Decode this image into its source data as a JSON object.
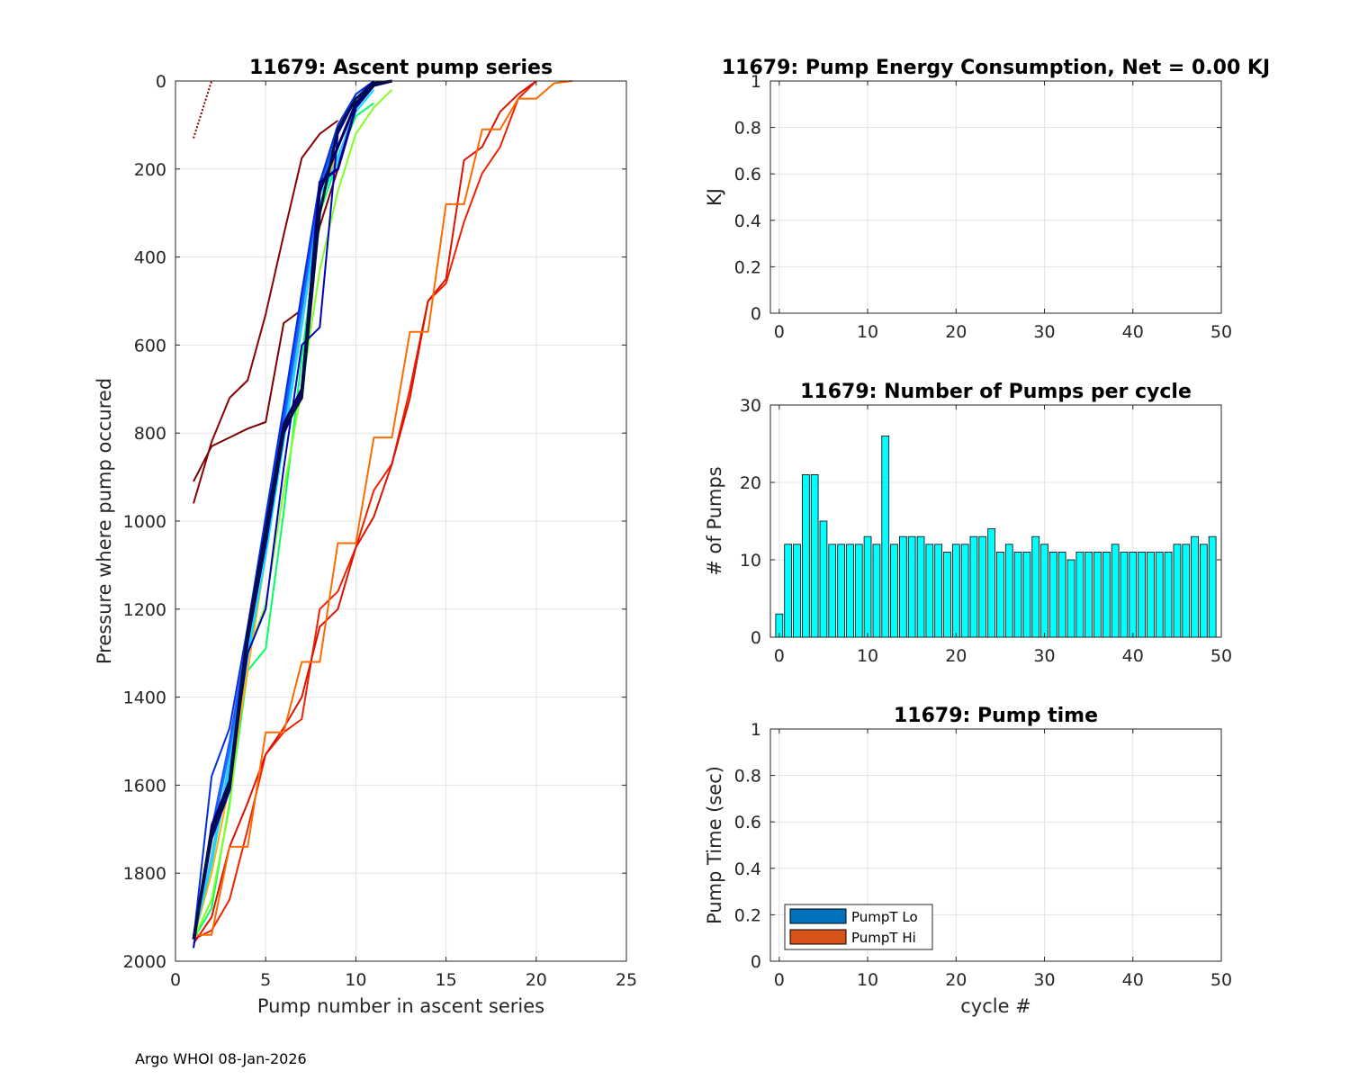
{
  "footer": "Argo WHOI 08-Jan-2026",
  "chart_data": [
    {
      "id": "ascent",
      "type": "line",
      "title": "11679: Ascent pump series",
      "xlabel": "Pump number in ascent series",
      "ylabel": "Pressure where pump occured",
      "xlim": [
        0,
        25
      ],
      "ylim": [
        0,
        2000
      ],
      "y_reversed": true,
      "xticks": [
        0,
        5,
        10,
        15,
        20,
        25
      ],
      "yticks": [
        0,
        200,
        400,
        600,
        800,
        1000,
        1200,
        1400,
        1600,
        1800,
        2000
      ],
      "grid": true,
      "series": [
        {
          "name": "cycle-0",
          "color": "#800000",
          "x": [
            1,
            2
          ],
          "y": [
            130,
            0
          ],
          "dotted": true
        },
        {
          "name": "cycle-1",
          "color": "#8b0000",
          "x": [
            1,
            2,
            3,
            4,
            5,
            6,
            7,
            8,
            9
          ],
          "y": [
            960,
            820,
            720,
            680,
            530,
            350,
            175,
            120,
            90
          ]
        },
        {
          "name": "cycle-2",
          "color": "#7a0000",
          "x": [
            1,
            2,
            3,
            4,
            5,
            6,
            7,
            8,
            9
          ],
          "y": [
            910,
            830,
            810,
            790,
            775,
            550,
            520,
            330,
            200
          ]
        },
        {
          "name": "cycle-3",
          "color": "#ee2200",
          "x": [
            1,
            2,
            3,
            4,
            5,
            6,
            7,
            8,
            9,
            10,
            11,
            12,
            13,
            14,
            15,
            16,
            17,
            18,
            19,
            20
          ],
          "y": [
            1950,
            1930,
            1860,
            1700,
            1530,
            1480,
            1450,
            1200,
            1160,
            1060,
            930,
            870,
            700,
            500,
            460,
            320,
            210,
            150,
            40,
            0
          ]
        },
        {
          "name": "cycle-4",
          "color": "#dd1100",
          "x": [
            1,
            2,
            3,
            4,
            5,
            6,
            7,
            8,
            9,
            10,
            11,
            12,
            13,
            14,
            15,
            16,
            17,
            18,
            19,
            20
          ],
          "y": [
            1960,
            1900,
            1740,
            1640,
            1530,
            1470,
            1400,
            1240,
            1200,
            1060,
            990,
            870,
            720,
            500,
            450,
            180,
            150,
            70,
            30,
            0
          ]
        },
        {
          "name": "cycle-5",
          "color": "#ff6a00",
          "x": [
            1,
            2,
            3,
            4,
            5,
            6,
            7,
            8,
            9,
            10,
            11,
            12,
            13,
            14,
            15,
            16,
            17,
            18,
            19,
            20,
            21,
            22
          ],
          "y": [
            1940,
            1940,
            1740,
            1740,
            1480,
            1480,
            1320,
            1320,
            1050,
            1050,
            810,
            810,
            570,
            570,
            280,
            280,
            110,
            110,
            40,
            40,
            5,
            0
          ]
        },
        {
          "name": "cycle-6",
          "color": "#00ff60",
          "x": [
            1,
            2,
            3,
            4,
            5,
            6,
            7,
            8,
            9,
            10,
            11
          ],
          "y": [
            1950,
            1880,
            1640,
            1340,
            1290,
            980,
            630,
            300,
            180,
            80,
            50
          ]
        },
        {
          "name": "cycle-7",
          "color": "#80ff20",
          "x": [
            1,
            2,
            3,
            4,
            5,
            6,
            7,
            8,
            9,
            10,
            11,
            12
          ],
          "y": [
            1950,
            1860,
            1650,
            1300,
            1190,
            930,
            700,
            430,
            250,
            120,
            60,
            20
          ]
        },
        {
          "name": "cycle-8",
          "color": "#ffb000",
          "x": [
            1,
            2,
            3,
            4,
            5,
            6,
            7,
            8,
            9,
            10,
            11
          ],
          "y": [
            1950,
            1800,
            1600,
            1340,
            1080,
            810,
            540,
            290,
            150,
            60,
            10
          ]
        },
        {
          "name": "cycle-9",
          "color": "#00e0ff",
          "x": [
            1,
            2,
            3,
            4,
            5,
            6,
            7,
            8,
            9,
            10,
            11
          ],
          "y": [
            1950,
            1780,
            1560,
            1310,
            1080,
            820,
            560,
            280,
            170,
            70,
            20
          ]
        },
        {
          "name": "cycle-10",
          "color": "#40c0ff",
          "x": [
            1,
            2,
            3,
            4,
            5,
            6,
            7,
            8,
            9,
            10,
            11
          ],
          "y": [
            1950,
            1760,
            1540,
            1290,
            1050,
            800,
            550,
            260,
            180,
            50,
            0
          ]
        },
        {
          "name": "cycle-11",
          "color": "#0080ff",
          "x": [
            1,
            2,
            3,
            4,
            5,
            6,
            7,
            8,
            9,
            10,
            11
          ],
          "y": [
            1950,
            1720,
            1520,
            1280,
            1020,
            780,
            520,
            250,
            120,
            40,
            0
          ]
        },
        {
          "name": "cycle-12",
          "color": "#2050ff",
          "x": [
            1,
            2,
            3,
            4,
            5,
            6,
            7,
            8,
            9,
            10,
            11
          ],
          "y": [
            1950,
            1700,
            1500,
            1260,
            1000,
            760,
            500,
            240,
            110,
            30,
            0
          ]
        },
        {
          "name": "cycle-13",
          "color": "#0030e0",
          "x": [
            1,
            2,
            3,
            4,
            5,
            6,
            7,
            8,
            9,
            10,
            11
          ],
          "y": [
            1950,
            1580,
            1470,
            1240,
            990,
            740,
            480,
            230,
            100,
            30,
            0
          ]
        },
        {
          "name": "cycle-14",
          "color": "#0000c0",
          "x": [
            1,
            2,
            3,
            4,
            5,
            6,
            7,
            8,
            9,
            10,
            11
          ],
          "y": [
            1970,
            1690,
            1590,
            1300,
            1200,
            880,
            600,
            560,
            120,
            40,
            0
          ]
        },
        {
          "name": "cycle-15",
          "color": "#000090",
          "x": [
            1,
            2,
            3,
            4,
            5,
            6,
            7,
            8,
            9,
            10,
            11,
            12
          ],
          "y": [
            1950,
            1720,
            1610,
            1270,
            1050,
            800,
            710,
            230,
            200,
            60,
            10,
            0
          ]
        },
        {
          "name": "cycle-16",
          "color": "#000060",
          "x": [
            1,
            2,
            3,
            4,
            5,
            6,
            7,
            8,
            9,
            10,
            11,
            12
          ],
          "y": [
            1950,
            1700,
            1590,
            1250,
            1020,
            780,
            700,
            250,
            150,
            50,
            10,
            0
          ]
        },
        {
          "name": "cycle-17",
          "color": "#001040",
          "x": [
            1,
            2,
            3,
            4,
            5,
            6,
            7,
            8,
            9,
            10,
            11,
            12
          ],
          "y": [
            1950,
            1710,
            1600,
            1260,
            1030,
            790,
            720,
            300,
            110,
            40,
            5,
            0
          ]
        }
      ]
    },
    {
      "id": "energy",
      "type": "bar",
      "title": "11679: Pump Energy Consumption,  Net =   0.00 KJ",
      "xlabel": "",
      "ylabel": "KJ",
      "xlim": [
        -1,
        50
      ],
      "ylim": [
        0,
        1
      ],
      "xticks": [
        0,
        10,
        20,
        30,
        40,
        50
      ],
      "yticks": [
        0,
        0.2,
        0.4,
        0.6,
        0.8,
        1
      ],
      "grid": true,
      "values": []
    },
    {
      "id": "pumps",
      "type": "bar",
      "title": "11679: Number of Pumps per cycle",
      "xlabel": "",
      "ylabel": "# of Pumps",
      "xlim": [
        -1,
        50
      ],
      "ylim": [
        0,
        30
      ],
      "xticks": [
        0,
        10,
        20,
        30,
        40,
        50
      ],
      "yticks": [
        0,
        10,
        20,
        30
      ],
      "grid": true,
      "bar_color": "#00ffff",
      "categories": [
        0,
        1,
        2,
        3,
        4,
        5,
        6,
        7,
        8,
        9,
        10,
        11,
        12,
        13,
        14,
        15,
        16,
        17,
        18,
        19,
        20,
        21,
        22,
        23,
        24,
        25,
        26,
        27,
        28,
        29,
        30,
        31,
        32,
        33,
        34,
        35,
        36,
        37,
        38,
        39,
        40,
        41,
        42,
        43,
        44,
        45,
        46,
        47,
        48,
        49
      ],
      "values": [
        3,
        12,
        12,
        21,
        21,
        15,
        12,
        12,
        12,
        12,
        13,
        12,
        26,
        12,
        13,
        13,
        13,
        12,
        12,
        11,
        12,
        12,
        13,
        13,
        14,
        11,
        12,
        11,
        11,
        13,
        12,
        11,
        11,
        10,
        11,
        11,
        11,
        11,
        12,
        11,
        11,
        11,
        11,
        11,
        11,
        12,
        12,
        13,
        12,
        13
      ]
    },
    {
      "id": "pumptime",
      "type": "bar",
      "title": "11679: Pump time",
      "xlabel": "cycle #",
      "ylabel": "Pump Time (sec)",
      "xlim": [
        -1,
        50
      ],
      "ylim": [
        0,
        1
      ],
      "xticks": [
        0,
        10,
        20,
        30,
        40,
        50
      ],
      "yticks": [
        0,
        0.2,
        0.4,
        0.6,
        0.8,
        1
      ],
      "grid": true,
      "legend_position": "bottom-left",
      "legend": [
        {
          "label": "PumpT Lo",
          "color": "#0072bd"
        },
        {
          "label": "PumpT Hi",
          "color": "#d95319"
        }
      ],
      "series": []
    }
  ]
}
